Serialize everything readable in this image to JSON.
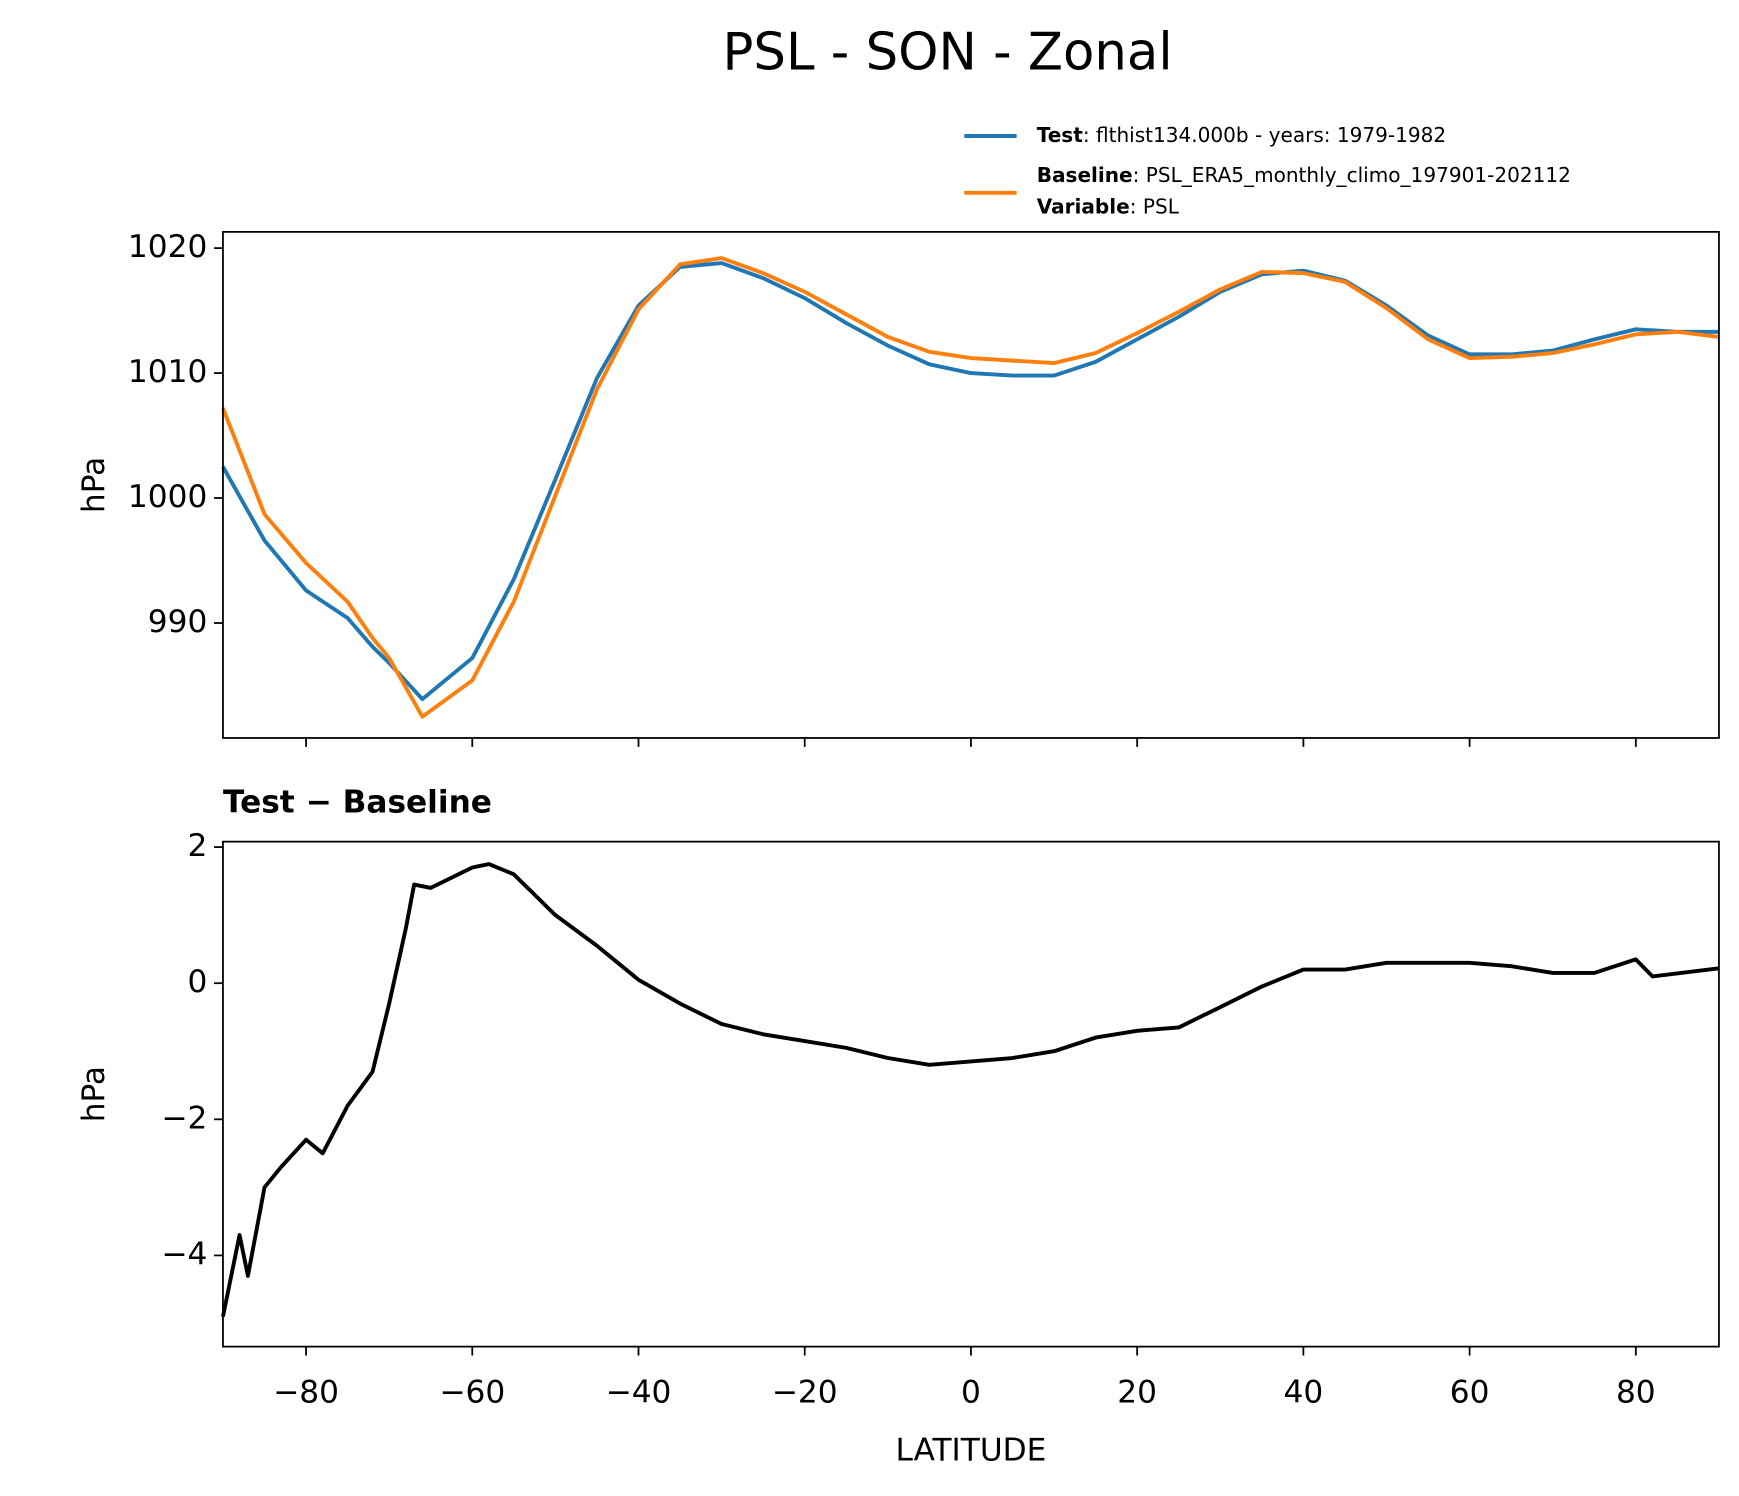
{
  "title": "PSL - SON - Zonal",
  "chart_data": [
    {
      "type": "line",
      "ylabel": "hPa",
      "xlim": [
        -90,
        90
      ],
      "ylim": [
        980.8,
        1021.3
      ],
      "xticks": [
        -80,
        -60,
        -40,
        -20,
        0,
        20,
        40,
        60,
        80
      ],
      "xtick_labels": false,
      "yticks": [
        990,
        1000,
        1010,
        1020
      ],
      "x": [
        -90,
        -85,
        -80,
        -75,
        -72,
        -70,
        -66,
        -60,
        -55,
        -50,
        -45,
        -40,
        -35,
        -30,
        -25,
        -20,
        -15,
        -10,
        -5,
        0,
        5,
        10,
        15,
        20,
        25,
        30,
        35,
        40,
        45,
        50,
        55,
        60,
        65,
        70,
        75,
        80,
        85,
        90
      ],
      "series": [
        {
          "name": "Test",
          "label": ": flthist134.000b - years: 1979-1982",
          "color": "#1f77b4",
          "values": [
            1002.5,
            996.6,
            992.6,
            990.4,
            988.1,
            986.8,
            983.9,
            987.2,
            993.5,
            1001.5,
            1009.6,
            1015.4,
            1018.5,
            1018.8,
            1017.6,
            1016.0,
            1014.0,
            1012.2,
            1010.7,
            1010.0,
            1009.8,
            1009.8,
            1010.9,
            1012.7,
            1014.5,
            1016.5,
            1017.9,
            1018.2,
            1017.4,
            1015.4,
            1013.0,
            1011.5,
            1011.5,
            1011.8,
            1012.7,
            1013.5,
            1013.3,
            1013.3
          ]
        },
        {
          "name": "Baseline",
          "label": ": PSL_ERA5_monthly_climo_197901-202112",
          "color": "#ff7f0e",
          "values": [
            1007.2,
            998.7,
            994.8,
            991.7,
            988.8,
            987.2,
            982.5,
            985.4,
            991.7,
            1000.2,
            1008.7,
            1015.1,
            1018.7,
            1019.2,
            1018.0,
            1016.5,
            1014.7,
            1012.9,
            1011.7,
            1011.2,
            1011.0,
            1010.8,
            1011.6,
            1013.2,
            1014.9,
            1016.7,
            1018.1,
            1018.0,
            1017.3,
            1015.2,
            1012.7,
            1011.2,
            1011.3,
            1011.6,
            1012.3,
            1013.1,
            1013.3,
            1012.9
          ]
        }
      ],
      "legend_note": {
        "name": "Variable",
        "label": ": PSL"
      }
    },
    {
      "type": "line",
      "title": "Test − Baseline",
      "xlabel": "LATITUDE",
      "ylabel": "hPa",
      "xlim": [
        -90,
        90
      ],
      "ylim": [
        -5.34,
        2.08
      ],
      "xticks": [
        {
          "value": -80,
          "label": "−80"
        },
        {
          "value": -60,
          "label": "−60"
        },
        {
          "value": -40,
          "label": "−40"
        },
        {
          "value": -20,
          "label": "−20"
        },
        0,
        20,
        40,
        60,
        80
      ],
      "xtick_labels": true,
      "yticks": [
        {
          "value": -4,
          "label": "−4"
        },
        {
          "value": -2,
          "label": "−2"
        },
        0,
        2
      ],
      "x": [
        -90,
        -88,
        -87,
        -85,
        -83,
        -80,
        -78,
        -75,
        -72,
        -70,
        -68,
        -67,
        -65,
        -60,
        -58,
        -55,
        -50,
        -45,
        -40,
        -35,
        -30,
        -25,
        -20,
        -15,
        -10,
        -5,
        0,
        5,
        10,
        15,
        20,
        25,
        30,
        35,
        40,
        45,
        50,
        55,
        60,
        65,
        70,
        75,
        80,
        82,
        90
      ],
      "series": [
        {
          "color": "#000000",
          "values": [
            -4.9,
            -3.7,
            -4.3,
            -3.0,
            -2.7,
            -2.3,
            -2.5,
            -1.8,
            -1.3,
            -0.3,
            0.8,
            1.45,
            1.4,
            1.7,
            1.75,
            1.6,
            1.0,
            0.55,
            0.05,
            -0.3,
            -0.6,
            -0.75,
            -0.85,
            -0.95,
            -1.1,
            -1.2,
            -1.15,
            -1.1,
            -1.0,
            -0.8,
            -0.7,
            -0.65,
            -0.35,
            -0.05,
            0.2,
            0.2,
            0.3,
            0.3,
            0.3,
            0.25,
            0.15,
            0.15,
            0.35,
            0.1,
            0.22
          ]
        }
      ]
    }
  ]
}
